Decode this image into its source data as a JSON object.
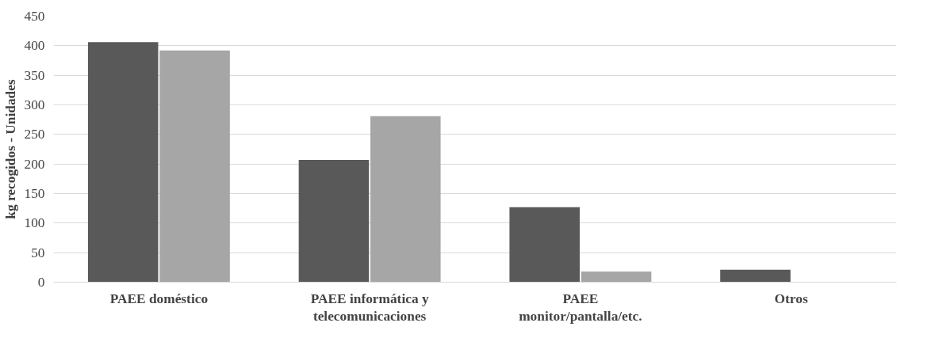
{
  "chart_data": {
    "type": "bar",
    "ylabel": "kg recogidos - Unidades",
    "categories": [
      "PAEE doméstico",
      "PAEE informática y\ntelecomunicaciones",
      "PAEE\nmonitor/pantalla/etc.",
      "Otros"
    ],
    "series": [
      {
        "color": "#595959",
        "values": [
          406,
          207,
          127,
          21
        ]
      },
      {
        "color": "#a6a6a6",
        "values": [
          392,
          281,
          18,
          null
        ]
      }
    ],
    "ylim": [
      0,
      450
    ],
    "yticks": [
      0,
      50,
      100,
      150,
      200,
      250,
      300,
      350,
      400,
      450
    ],
    "grid": "y"
  }
}
